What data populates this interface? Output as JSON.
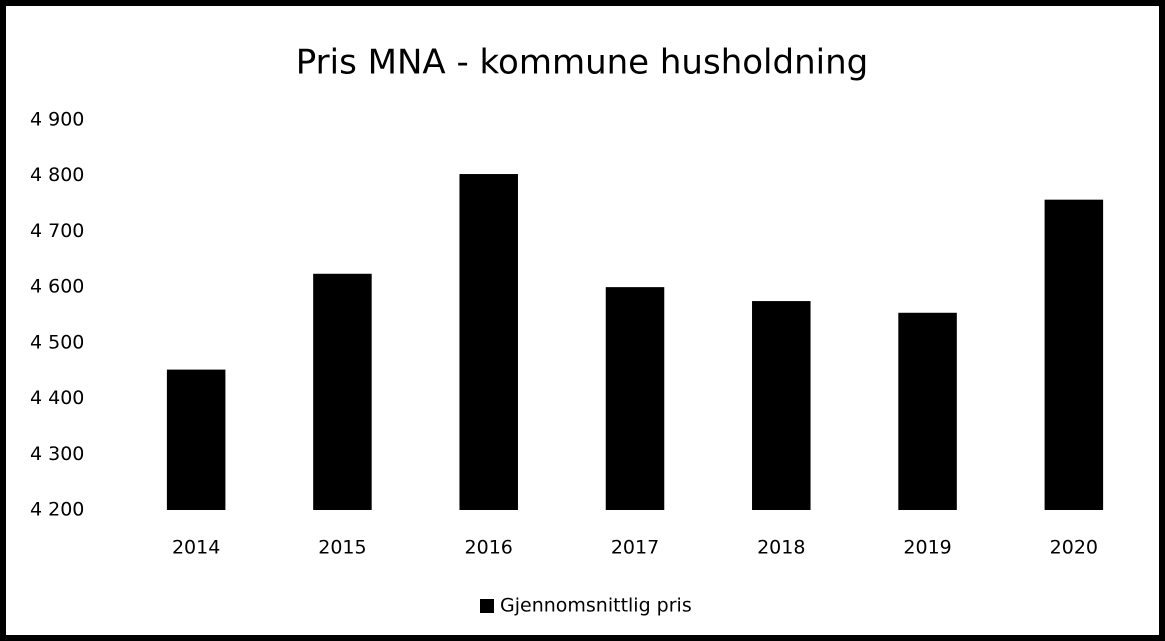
{
  "chart_data": {
    "type": "bar",
    "title": "Pris MNA - kommune husholdning",
    "categories": [
      "2014",
      "2015",
      "2016",
      "2017",
      "2018",
      "2019",
      "2020"
    ],
    "series": [
      {
        "name": "Gjennomsnittlig pris",
        "color": "#000000",
        "values": [
          4452,
          4624,
          4803,
          4600,
          4575,
          4554,
          4757
        ]
      }
    ],
    "ylim": [
      4200,
      4900
    ],
    "yticks": [
      {
        "value": 4200,
        "label": "4 200"
      },
      {
        "value": 4300,
        "label": "4 300"
      },
      {
        "value": 4400,
        "label": "4 400"
      },
      {
        "value": 4500,
        "label": "4 500"
      },
      {
        "value": 4600,
        "label": "4 600"
      },
      {
        "value": 4700,
        "label": "4 700"
      },
      {
        "value": 4800,
        "label": "4 800"
      },
      {
        "value": 4900,
        "label": "4 900"
      }
    ],
    "grid": false,
    "legend": "bottom"
  }
}
